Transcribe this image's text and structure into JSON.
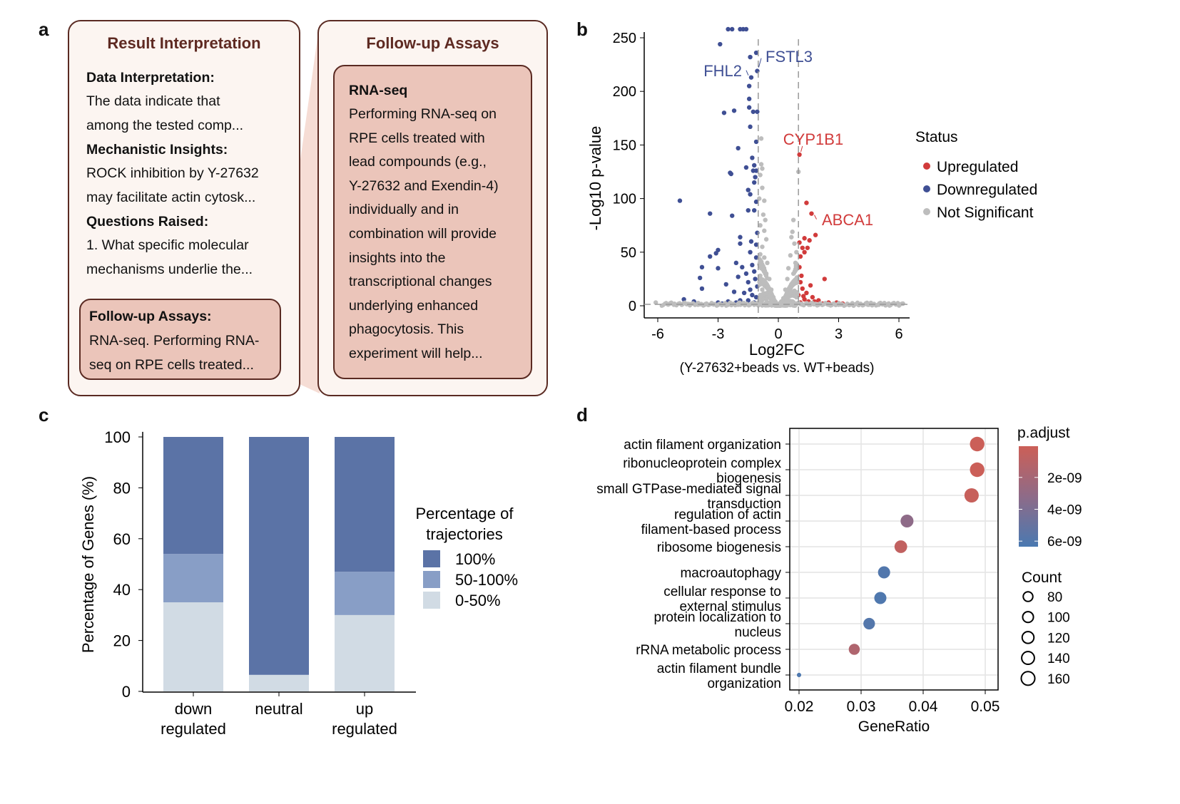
{
  "panel_labels": {
    "a": "a",
    "b": "b",
    "c": "c",
    "d": "d"
  },
  "panel_a": {
    "result_box": {
      "title": "Result Interpretation",
      "sections": [
        {
          "heading": "Data Interpretation:",
          "lines": [
            "The data indicate that",
            "among the tested comp..."
          ]
        },
        {
          "heading": "Mechanistic Insights:",
          "lines": [
            "ROCK inhibition by Y-27632",
            "may facilitate actin cytosk..."
          ]
        },
        {
          "heading": "Questions Raised:",
          "lines": [
            "1. What specific molecular",
            "mechanisms underlie the..."
          ]
        }
      ],
      "followup": {
        "heading": "Follow-up Assays:",
        "lines": [
          "RNA-seq. Performing RNA-",
          "seq on RPE cells treated..."
        ]
      }
    },
    "followup_box": {
      "title": "Follow-up Assays",
      "inner_heading": "RNA-seq",
      "lines": [
        "Performing RNA-seq on",
        "RPE cells treated with",
        "lead compounds (e.g.,",
        "Y-27632 and Exendin-4)",
        "individually and in",
        "combination will provide",
        "insights into the",
        "transcriptional changes",
        "underlying enhanced",
        "phagocytosis. This",
        "experiment will help..."
      ]
    },
    "colors": {
      "border": "#5a2a22",
      "box_bg": "#fcf5f1",
      "inner_bg": "#ebc5ba",
      "title": "#5e2a22"
    }
  },
  "chart_data": [
    {
      "id": "b",
      "type": "scatter",
      "title": "",
      "xlabel": "Log2FC",
      "xlabel_sub": "(Y-27632+beads vs. WT+beads)",
      "ylabel": "-Log10 p-value",
      "xlim": [
        -6.7,
        6.5
      ],
      "ylim": [
        -10,
        260
      ],
      "xticks": [
        -6,
        -3,
        0,
        3,
        6
      ],
      "yticks": [
        0,
        50,
        100,
        150,
        200,
        250
      ],
      "thresholds": {
        "log2fc": [
          -1,
          1
        ],
        "neg_log10_p": 1.3
      },
      "legend": {
        "title": "Status",
        "position": "right",
        "entries": [
          {
            "name": "Upregulated",
            "color": "#d13b3b"
          },
          {
            "name": "Downregulated",
            "color": "#3f4f94"
          },
          {
            "name": "Not Significant",
            "color": "#bdbdbd"
          }
        ]
      },
      "labels": [
        {
          "gene": "FSTL3",
          "x": -1.05,
          "y": 219,
          "status": "Downregulated"
        },
        {
          "gene": "FHL2",
          "x": -1.35,
          "y": 213,
          "status": "Downregulated"
        },
        {
          "gene": "CYP1B1",
          "x": 1.05,
          "y": 141,
          "status": "Upregulated"
        },
        {
          "gene": "ABCA1",
          "x": 1.65,
          "y": 86,
          "status": "Upregulated"
        }
      ],
      "points": {
        "Downregulated": [
          [
            -2.5,
            258
          ],
          [
            -2.3,
            258
          ],
          [
            -1.9,
            258
          ],
          [
            -1.75,
            258
          ],
          [
            -1.6,
            258
          ],
          [
            -2.9,
            244
          ],
          [
            -1.1,
            236
          ],
          [
            -1.4,
            232
          ],
          [
            -1.05,
            219
          ],
          [
            -1.35,
            213
          ],
          [
            -1.45,
            205
          ],
          [
            -1.45,
            193
          ],
          [
            -1.45,
            185
          ],
          [
            -1.25,
            181
          ],
          [
            -1.05,
            181
          ],
          [
            -2.7,
            180
          ],
          [
            -2.2,
            182
          ],
          [
            -1.4,
            167
          ],
          [
            -1.1,
            153
          ],
          [
            -2.0,
            147
          ],
          [
            -1.3,
            138
          ],
          [
            -1.6,
            129
          ],
          [
            -1.2,
            131
          ],
          [
            -2.4,
            124
          ],
          [
            -2.35,
            123
          ],
          [
            -1.25,
            126
          ],
          [
            -1.1,
            126
          ],
          [
            -1.15,
            120
          ],
          [
            -1.2,
            115
          ],
          [
            -1.5,
            108
          ],
          [
            -1.4,
            104
          ],
          [
            -4.9,
            98
          ],
          [
            -3.4,
            86
          ],
          [
            -2.3,
            84
          ],
          [
            -1.5,
            89
          ],
          [
            -1.2,
            89
          ],
          [
            -1.1,
            97
          ],
          [
            -1.9,
            64
          ],
          [
            -1.35,
            60
          ],
          [
            -1.9,
            58
          ],
          [
            -1.1,
            57
          ],
          [
            -1.05,
            68
          ],
          [
            -3.0,
            52
          ],
          [
            -3.1,
            49
          ],
          [
            -3.4,
            46
          ],
          [
            -1.4,
            50
          ],
          [
            -3.8,
            36
          ],
          [
            -2.1,
            40
          ],
          [
            -1.8,
            36
          ],
          [
            -3.0,
            35
          ],
          [
            -1.3,
            38
          ],
          [
            -1.1,
            45
          ],
          [
            -3.9,
            26
          ],
          [
            -2.0,
            27
          ],
          [
            -1.6,
            30
          ],
          [
            -1.2,
            32
          ],
          [
            -2.6,
            20
          ],
          [
            -1.5,
            22
          ],
          [
            -1.15,
            25
          ],
          [
            -3.8,
            16
          ],
          [
            -2.2,
            13
          ],
          [
            -1.7,
            12
          ],
          [
            -1.4,
            15
          ],
          [
            -1.05,
            18
          ],
          [
            -4.7,
            6
          ],
          [
            -4.2,
            4
          ],
          [
            -3.0,
            3
          ],
          [
            -2.5,
            4
          ],
          [
            -1.9,
            5
          ],
          [
            -1.3,
            10
          ],
          [
            -1.1,
            8
          ],
          [
            -1.5,
            5
          ],
          [
            -2.8,
            2
          ],
          [
            -1.2,
            3
          ],
          [
            -1.7,
            2
          ],
          [
            -3.3,
            2
          ],
          [
            -2.1,
            3
          ]
        ],
        "Upregulated": [
          [
            1.05,
            141
          ],
          [
            1.4,
            96
          ],
          [
            1.65,
            86
          ],
          [
            1.85,
            66
          ],
          [
            1.3,
            63
          ],
          [
            1.55,
            61
          ],
          [
            1.05,
            59
          ],
          [
            1.2,
            54
          ],
          [
            1.45,
            54
          ],
          [
            1.3,
            50
          ],
          [
            1.1,
            46
          ],
          [
            1.05,
            36
          ],
          [
            1.15,
            28
          ],
          [
            2.3,
            25
          ],
          [
            1.1,
            22
          ],
          [
            1.6,
            19
          ],
          [
            1.2,
            16
          ],
          [
            1.4,
            12
          ],
          [
            1.0,
            10
          ],
          [
            1.7,
            8
          ],
          [
            1.3,
            6
          ],
          [
            2.0,
            5
          ],
          [
            2.5,
            3
          ],
          [
            2.9,
            3
          ],
          [
            2.2,
            2
          ],
          [
            1.5,
            4
          ],
          [
            1.1,
            3
          ],
          [
            1.25,
            9
          ],
          [
            1.8,
            4
          ],
          [
            3.2,
            2
          ]
        ],
        "Not Significant": [
          [
            -0.85,
            156
          ],
          [
            -0.85,
            132
          ],
          [
            -0.8,
            128
          ],
          [
            -0.9,
            122
          ],
          [
            -0.8,
            110
          ],
          [
            -0.95,
            100
          ],
          [
            -0.7,
            98
          ],
          [
            -0.75,
            85
          ],
          [
            -0.65,
            80
          ],
          [
            -0.7,
            70
          ],
          [
            -0.9,
            75
          ],
          [
            -0.6,
            62
          ],
          [
            -0.8,
            55
          ],
          [
            -0.9,
            48
          ],
          [
            -0.7,
            45
          ],
          [
            -0.55,
            40
          ],
          [
            -0.85,
            35
          ],
          [
            -0.6,
            30
          ],
          [
            -0.45,
            25
          ],
          [
            -0.9,
            28
          ],
          [
            -0.7,
            20
          ],
          [
            -0.35,
            15
          ],
          [
            -0.8,
            15
          ],
          [
            -0.55,
            12
          ],
          [
            -0.25,
            8
          ],
          [
            -0.6,
            6
          ],
          [
            -0.15,
            4
          ],
          [
            -0.9,
            10
          ],
          [
            -0.4,
            3
          ],
          [
            1.0,
            125
          ],
          [
            0.75,
            80
          ],
          [
            0.7,
            69
          ],
          [
            0.65,
            64
          ],
          [
            0.8,
            58
          ],
          [
            0.9,
            50
          ],
          [
            0.6,
            47
          ],
          [
            0.85,
            40
          ],
          [
            0.5,
            35
          ],
          [
            0.75,
            30
          ],
          [
            0.45,
            25
          ],
          [
            0.9,
            25
          ],
          [
            0.65,
            20
          ],
          [
            0.35,
            15
          ],
          [
            0.8,
            14
          ],
          [
            0.55,
            10
          ],
          [
            0.25,
            7
          ],
          [
            0.9,
            8
          ],
          [
            0.15,
            4
          ],
          [
            0.6,
            4
          ],
          [
            -6.1,
            3
          ],
          [
            -5.6,
            2
          ],
          [
            -5.2,
            1
          ],
          [
            -4.8,
            1
          ],
          [
            -4.4,
            1.5
          ],
          [
            -4.0,
            1
          ],
          [
            -3.5,
            1
          ],
          [
            -3.0,
            1
          ],
          [
            -2.5,
            1
          ],
          [
            -2.0,
            1
          ],
          [
            -1.5,
            1
          ],
          [
            -1.2,
            1
          ],
          [
            1.2,
            1
          ],
          [
            1.6,
            1
          ],
          [
            2.0,
            1
          ],
          [
            2.5,
            1
          ],
          [
            3.0,
            1
          ],
          [
            3.5,
            1
          ],
          [
            4.0,
            1
          ],
          [
            4.5,
            1
          ],
          [
            5.0,
            1
          ],
          [
            5.5,
            1
          ],
          [
            6.0,
            1
          ],
          [
            6.2,
            2
          ],
          [
            -0.05,
            0.5
          ],
          [
            0.05,
            0.5
          ]
        ]
      }
    },
    {
      "id": "c",
      "type": "bar",
      "stacked": true,
      "title": "",
      "xlabel": "",
      "ylabel": "Percentage  of  Genes  (%)",
      "ylim": [
        0,
        100
      ],
      "yticks": [
        0,
        20,
        40,
        60,
        80,
        100
      ],
      "categories": [
        [
          "down",
          "regulated"
        ],
        [
          "neutral"
        ],
        [
          "up",
          "regulated"
        ]
      ],
      "legend": {
        "title": [
          "Percentage of",
          "trajectories"
        ],
        "position": "right"
      },
      "series": [
        {
          "name": "0-50%",
          "color": "#d1dbe4",
          "values": [
            35,
            6.5,
            30
          ]
        },
        {
          "name": "50-100%",
          "color": "#889ec6",
          "values": [
            19,
            0,
            17
          ]
        },
        {
          "name": "100%",
          "color": "#5b73a6",
          "values": [
            46,
            93.5,
            53
          ]
        }
      ],
      "legend_order": [
        "100%",
        "50-100%",
        "0-50%"
      ]
    },
    {
      "id": "d",
      "type": "scatter",
      "subtype": "dotplot",
      "title": "",
      "xlabel": "GeneRatio",
      "ylabel": "",
      "xlim": [
        0.0185,
        0.0535
      ],
      "xticks": [
        "0.02",
        "0.03",
        "0.04",
        "0.05"
      ],
      "grid": true,
      "terms": [
        {
          "label": [
            "actin filament organization"
          ],
          "gene_ratio": 0.0487,
          "count": 165,
          "p_adjust": 1e-10
        },
        {
          "label": [
            "ribonucleoprotein complex",
            "biogenesis"
          ],
          "gene_ratio": 0.0487,
          "count": 165,
          "p_adjust": 1e-10
        },
        {
          "label": [
            "small GTPase-mediated signal",
            "transduction"
          ],
          "gene_ratio": 0.0478,
          "count": 160,
          "p_adjust": 3e-10
        },
        {
          "label": [
            "regulation of actin",
            "filament-based process"
          ],
          "gene_ratio": 0.0374,
          "count": 130,
          "p_adjust": 3.2e-09
        },
        {
          "label": [
            "ribosome biogenesis"
          ],
          "gene_ratio": 0.0364,
          "count": 125,
          "p_adjust": 6e-10
        },
        {
          "label": [
            "macroautophagy"
          ],
          "gene_ratio": 0.0337,
          "count": 115,
          "p_adjust": 6e-09
        },
        {
          "label": [
            "cellular response to",
            "external stimulus"
          ],
          "gene_ratio": 0.0331,
          "count": 115,
          "p_adjust": 6.1e-09
        },
        {
          "label": [
            "protein localization to",
            "nucleus"
          ],
          "gene_ratio": 0.0313,
          "count": 105,
          "p_adjust": 5.9e-09
        },
        {
          "label": [
            "rRNA metabolic process"
          ],
          "gene_ratio": 0.0289,
          "count": 95,
          "p_adjust": 1.5e-09
        },
        {
          "label": [
            "actin filament bundle",
            "organization"
          ],
          "gene_ratio": 0.02,
          "count": 15,
          "p_adjust": 6.2e-09
        }
      ],
      "color_legend": {
        "title": "p.adjust",
        "range": [
          4e-11,
          6.35e-09
        ],
        "ticks": [
          {
            "label": "2e-09",
            "value": 2e-09
          },
          {
            "label": "4e-09",
            "value": 4e-09
          },
          {
            "label": "6e-09",
            "value": 6e-09
          }
        ],
        "low_color": "#cc5f57",
        "mid_color": "#8e6b88",
        "high_color": "#4a79b1"
      },
      "size_legend": {
        "title": "Count",
        "values": [
          80,
          100,
          120,
          140,
          160
        ]
      }
    }
  ]
}
